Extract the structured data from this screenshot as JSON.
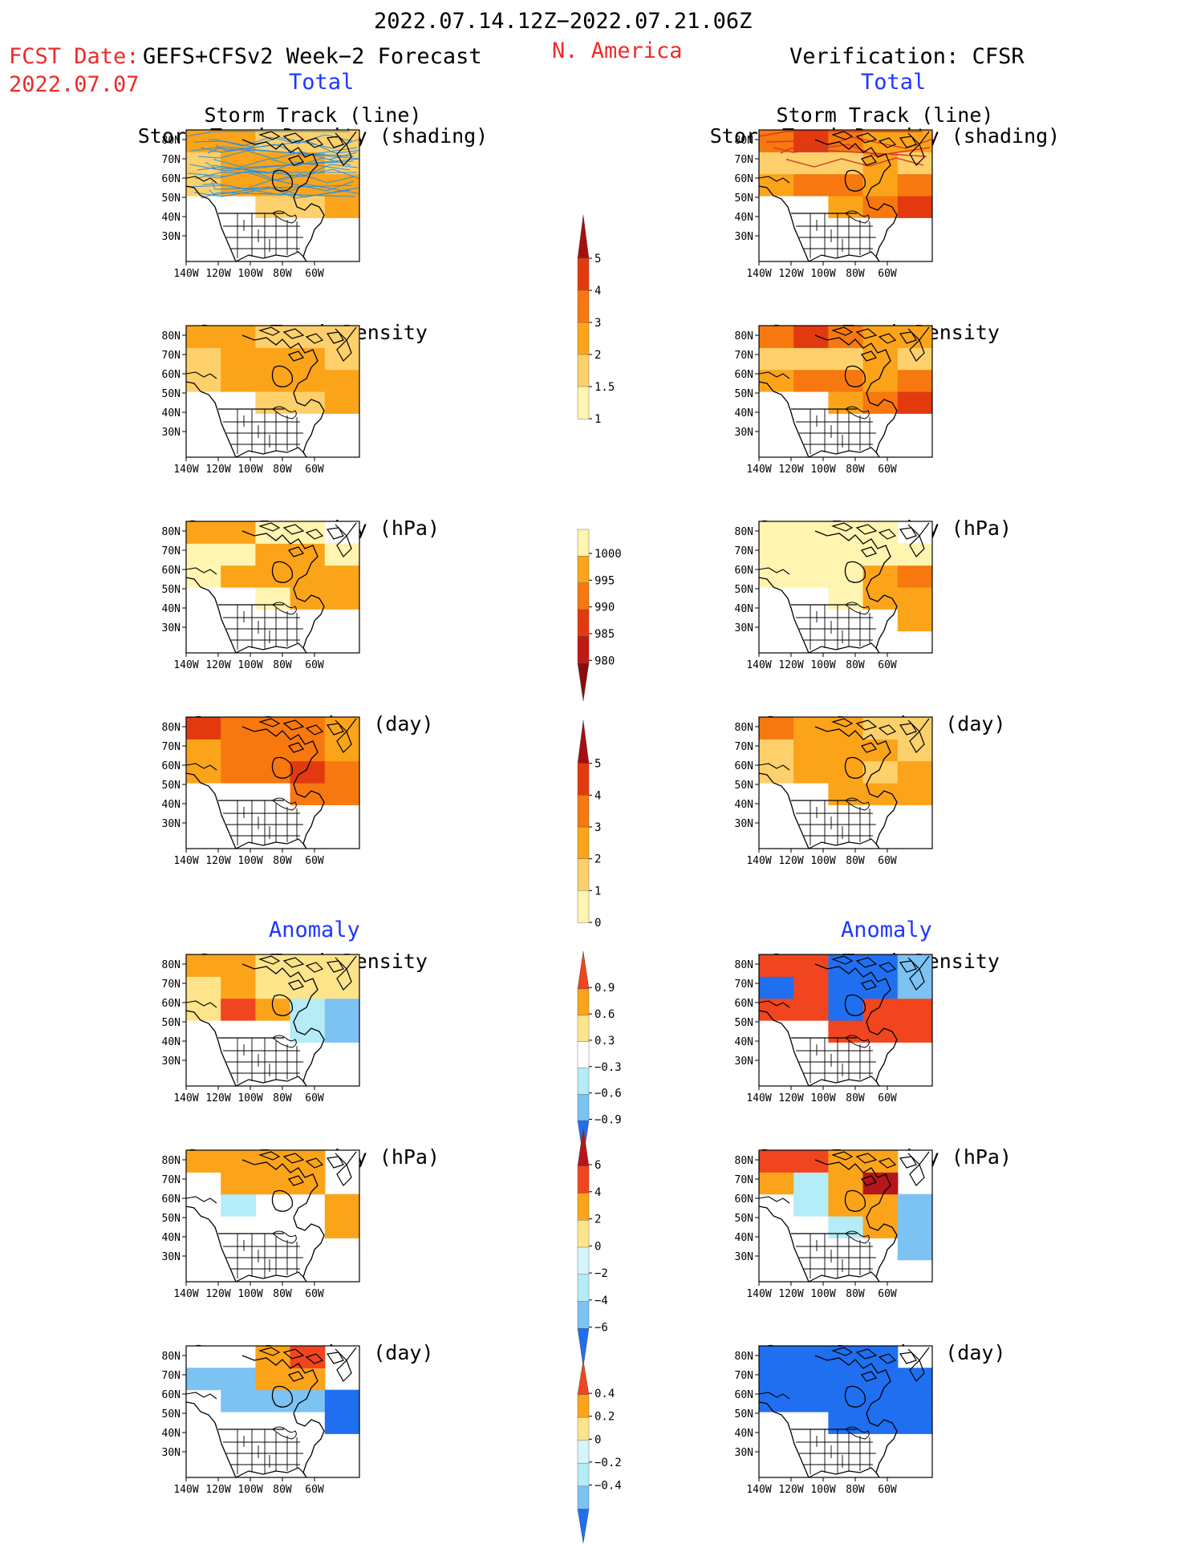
{
  "header": {
    "period": "2022.07.14.12Z−2022.07.21.06Z",
    "fcst_label": "FCST Date:",
    "fcst_model": "GEFS+CFSv2 Week−2 Forecast",
    "fcst_date": "2022.07.07",
    "region": "N. America",
    "verification": "Verification: CFSR",
    "left_section_total": "Total",
    "right_section_total": "Total",
    "left_section_anomaly": "Anomaly",
    "right_section_anomaly": "Anomaly"
  },
  "panel_titles": {
    "track_line": "Storm Track (line)",
    "track_shading": "Storm Track Density (shading)",
    "density": "Storm Track Density",
    "intensity": "Storm Intensity (hPa)",
    "duration": "Storm Duration (day)"
  },
  "axis": {
    "lat_ticks": [
      "80N",
      "70N",
      "60N",
      "50N",
      "40N",
      "30N"
    ],
    "lon_ticks": [
      "140W",
      "120W",
      "100W",
      "80W",
      "60W"
    ]
  },
  "colorbars": {
    "density_total": {
      "labels": [
        "5",
        "4",
        "3",
        "2",
        "1.5",
        "1"
      ],
      "colors": [
        "#a50f0f",
        "#e23a0e",
        "#f7780f",
        "#fba41a",
        "#fdd06b",
        "#fff4b0"
      ]
    },
    "intensity_total": {
      "labels": [
        "1000",
        "995",
        "990",
        "985",
        "980"
      ],
      "colors": [
        "#fff4b0",
        "#fba41a",
        "#f7780f",
        "#e23a0e",
        "#c01a12",
        "#8a0d0d"
      ]
    },
    "duration_total": {
      "labels": [
        "5",
        "4",
        "3",
        "2",
        "1",
        "0"
      ],
      "colors": [
        "#a50f0f",
        "#e23a0e",
        "#f7780f",
        "#fba41a",
        "#fdd06b",
        "#fff4b0"
      ]
    },
    "density_anomaly": {
      "labels": [
        "0.9",
        "0.6",
        "0.3",
        "−0.3",
        "−0.6",
        "−0.9"
      ],
      "colors": [
        "#f0451e",
        "#fba41a",
        "#fde48a",
        "#ffffff",
        "#b4ecf7",
        "#7cc2f3",
        "#1f6ff0"
      ]
    },
    "intensity_anomaly": {
      "labels": [
        "6",
        "4",
        "2",
        "0",
        "−2",
        "−4",
        "−6"
      ],
      "colors": [
        "#b4161b",
        "#f0451e",
        "#fba41a",
        "#fde48a",
        "#d6f4fb",
        "#b4ecf7",
        "#7cc2f3",
        "#1f6ff0"
      ]
    },
    "duration_anomaly": {
      "labels": [
        "0.4",
        "0.2",
        "0",
        "−0.2",
        "−0.4"
      ],
      "colors": [
        "#f0451e",
        "#fba41a",
        "#fde48a",
        "#d6f4fb",
        "#b4ecf7",
        "#7cc2f3",
        "#1f6ff0"
      ]
    }
  },
  "chart_data": [
    {
      "type": "heatmap",
      "panel": "forecast-total-storm-track",
      "title": "Storm Track (line) / Storm Track Density (shading)",
      "xlim": [
        -150,
        -50
      ],
      "ylim": [
        25,
        85
      ],
      "x": [
        "140W",
        "120W",
        "100W",
        "80W",
        "60W"
      ],
      "y": [
        "30N",
        "40N",
        "50N",
        "60N",
        "70N",
        "80N"
      ],
      "values": [
        [
          0,
          0,
          0,
          0,
          0
        ],
        [
          0,
          0,
          0,
          0,
          0
        ],
        [
          0,
          0,
          1.5,
          1.5,
          2
        ],
        [
          1.5,
          2,
          2,
          2,
          2
        ],
        [
          1.5,
          2,
          2,
          2,
          1.5
        ],
        [
          2,
          2,
          1.5,
          1.5,
          1.5
        ]
      ]
    },
    {
      "type": "heatmap",
      "panel": "cfsr-total-storm-track",
      "title": "Storm Track (line) / Storm Track Density (shading)",
      "xlim": [
        -150,
        -50
      ],
      "ylim": [
        25,
        85
      ],
      "x": [
        "140W",
        "120W",
        "100W",
        "80W",
        "60W"
      ],
      "y": [
        "30N",
        "40N",
        "50N",
        "60N",
        "70N",
        "80N"
      ],
      "values": [
        [
          0,
          0,
          0,
          0,
          0
        ],
        [
          0,
          0,
          0,
          0,
          0
        ],
        [
          0,
          0,
          2,
          3,
          4
        ],
        [
          2,
          3,
          3,
          2,
          3
        ],
        [
          1.5,
          1.5,
          1.5,
          2,
          1.5
        ],
        [
          3,
          4,
          3,
          2,
          2
        ]
      ]
    },
    {
      "type": "heatmap",
      "panel": "forecast-total-density",
      "title": "Storm Track Density",
      "xlim": [
        -150,
        -50
      ],
      "ylim": [
        25,
        85
      ],
      "x": [
        "140W",
        "120W",
        "100W",
        "80W",
        "60W"
      ],
      "y": [
        "30N",
        "40N",
        "50N",
        "60N",
        "70N",
        "80N"
      ],
      "values": [
        [
          0,
          0,
          0,
          0,
          0
        ],
        [
          0,
          0,
          0,
          0,
          0
        ],
        [
          0,
          0,
          1.5,
          1.5,
          2
        ],
        [
          1.5,
          2,
          2,
          2,
          2
        ],
        [
          1.5,
          2,
          2,
          2,
          1.5
        ],
        [
          2,
          2,
          1.5,
          1.5,
          1.5
        ]
      ]
    },
    {
      "type": "heatmap",
      "panel": "cfsr-total-density",
      "title": "Storm Track Density",
      "xlim": [
        -150,
        -50
      ],
      "ylim": [
        25,
        85
      ],
      "x": [
        "140W",
        "120W",
        "100W",
        "80W",
        "60W"
      ],
      "y": [
        "30N",
        "40N",
        "50N",
        "60N",
        "70N",
        "80N"
      ],
      "values": [
        [
          0,
          0,
          0,
          0,
          0
        ],
        [
          0,
          0,
          0,
          0,
          0
        ],
        [
          0,
          0,
          2,
          3,
          4
        ],
        [
          2,
          3,
          3,
          2,
          3
        ],
        [
          1.5,
          1.5,
          1.5,
          2,
          1.5
        ],
        [
          3,
          4,
          3,
          2,
          2
        ]
      ]
    },
    {
      "type": "heatmap",
      "panel": "forecast-total-intensity",
      "title": "Storm Intensity (hPa)",
      "xlim": [
        -150,
        -50
      ],
      "ylim": [
        25,
        85
      ],
      "x": [
        "140W",
        "120W",
        "100W",
        "80W",
        "60W"
      ],
      "y": [
        "30N",
        "40N",
        "50N",
        "60N",
        "70N",
        "80N"
      ],
      "values": [
        [
          0,
          0,
          0,
          0,
          0
        ],
        [
          0,
          0,
          0,
          0,
          0
        ],
        [
          0,
          0,
          1000,
          995,
          995
        ],
        [
          1000,
          995,
          995,
          995,
          995
        ],
        [
          1000,
          1000,
          995,
          995,
          1000
        ],
        [
          995,
          995,
          1000,
          1000,
          0
        ]
      ]
    },
    {
      "type": "heatmap",
      "panel": "cfsr-total-intensity",
      "title": "Storm Intensity (hPa)",
      "xlim": [
        -150,
        -50
      ],
      "ylim": [
        25,
        85
      ],
      "x": [
        "140W",
        "120W",
        "100W",
        "80W",
        "60W"
      ],
      "y": [
        "30N",
        "40N",
        "50N",
        "60N",
        "70N",
        "80N"
      ],
      "values": [
        [
          0,
          0,
          0,
          0,
          0
        ],
        [
          0,
          0,
          0,
          0,
          995
        ],
        [
          0,
          0,
          1000,
          995,
          995
        ],
        [
          1000,
          1000,
          1000,
          995,
          990
        ],
        [
          1000,
          1000,
          1000,
          1000,
          1000
        ],
        [
          1000,
          1000,
          1000,
          1000,
          0
        ]
      ]
    },
    {
      "type": "heatmap",
      "panel": "forecast-total-duration",
      "title": "Storm Duration (day)",
      "xlim": [
        -150,
        -50
      ],
      "ylim": [
        25,
        85
      ],
      "x": [
        "140W",
        "120W",
        "100W",
        "80W",
        "60W"
      ],
      "y": [
        "30N",
        "40N",
        "50N",
        "60N",
        "70N",
        "80N"
      ],
      "values": [
        [
          0,
          0,
          0,
          0,
          0
        ],
        [
          0,
          0,
          0,
          0,
          0
        ],
        [
          0,
          0,
          0,
          3,
          3
        ],
        [
          2,
          3,
          3,
          4,
          3
        ],
        [
          2,
          3,
          3,
          3,
          2
        ],
        [
          4,
          3,
          3,
          3,
          2
        ]
      ]
    },
    {
      "type": "heatmap",
      "panel": "cfsr-total-duration",
      "title": "Storm Duration (day)",
      "xlim": [
        -150,
        -50
      ],
      "ylim": [
        25,
        85
      ],
      "x": [
        "140W",
        "120W",
        "100W",
        "80W",
        "60W"
      ],
      "y": [
        "30N",
        "40N",
        "50N",
        "60N",
        "70N",
        "80N"
      ],
      "values": [
        [
          0,
          0,
          0,
          0,
          0
        ],
        [
          0,
          0,
          0,
          0,
          0
        ],
        [
          0,
          0,
          2,
          2,
          2
        ],
        [
          1,
          2,
          2,
          1,
          2
        ],
        [
          1,
          2,
          2,
          2,
          1
        ],
        [
          3,
          2,
          2,
          1,
          1
        ]
      ]
    },
    {
      "type": "heatmap",
      "panel": "forecast-anomaly-density",
      "title": "Storm Track Density",
      "xlim": [
        -150,
        -50
      ],
      "ylim": [
        25,
        85
      ],
      "x": [
        "140W",
        "120W",
        "100W",
        "80W",
        "60W"
      ],
      "y": [
        "30N",
        "40N",
        "50N",
        "60N",
        "70N",
        "80N"
      ],
      "values": [
        [
          0,
          0,
          0,
          0,
          0
        ],
        [
          0,
          0,
          0,
          0,
          0
        ],
        [
          0,
          0,
          0,
          -0.3,
          -0.6
        ],
        [
          0.3,
          0.9,
          0.6,
          -0.3,
          -0.6
        ],
        [
          0.3,
          0.6,
          0.3,
          0.3,
          0.3
        ],
        [
          0.6,
          0.6,
          0.3,
          0.3,
          0.3
        ]
      ]
    },
    {
      "type": "heatmap",
      "panel": "cfsr-anomaly-density",
      "title": "Storm Track Density",
      "xlim": [
        -150,
        -50
      ],
      "ylim": [
        25,
        85
      ],
      "x": [
        "140W",
        "120W",
        "100W",
        "80W",
        "60W"
      ],
      "y": [
        "30N",
        "40N",
        "50N",
        "60N",
        "70N",
        "80N"
      ],
      "values": [
        [
          0,
          0,
          0,
          0,
          0
        ],
        [
          0,
          0,
          0,
          0,
          0
        ],
        [
          0,
          0,
          0.9,
          0.9,
          0.9
        ],
        [
          0.9,
          0.9,
          -0.9,
          0.9,
          0.9
        ],
        [
          -0.9,
          0.9,
          -0.9,
          -0.9,
          -0.6
        ],
        [
          0.9,
          0.9,
          -0.9,
          -0.9,
          -0.6
        ]
      ]
    },
    {
      "type": "heatmap",
      "panel": "forecast-anomaly-intensity",
      "title": "Storm Intensity (hPa)",
      "xlim": [
        -150,
        -50
      ],
      "ylim": [
        25,
        85
      ],
      "x": [
        "140W",
        "120W",
        "100W",
        "80W",
        "60W"
      ],
      "y": [
        "30N",
        "40N",
        "50N",
        "60N",
        "70N",
        "80N"
      ],
      "values": [
        [
          0,
          0,
          0,
          0,
          0
        ],
        [
          0,
          0,
          0,
          0,
          0
        ],
        [
          0,
          0,
          0,
          0,
          2
        ],
        [
          0,
          -2,
          0,
          0,
          2
        ],
        [
          0,
          2,
          2,
          2,
          0
        ],
        [
          2,
          2,
          2,
          2,
          0
        ]
      ]
    },
    {
      "type": "heatmap",
      "panel": "cfsr-anomaly-intensity",
      "title": "Storm Intensity (hPa)",
      "xlim": [
        -150,
        -50
      ],
      "ylim": [
        25,
        85
      ],
      "x": [
        "140W",
        "120W",
        "100W",
        "80W",
        "60W"
      ],
      "y": [
        "30N",
        "40N",
        "50N",
        "60N",
        "70N",
        "80N"
      ],
      "values": [
        [
          0,
          0,
          0,
          0,
          0
        ],
        [
          0,
          0,
          0,
          0,
          -4
        ],
        [
          0,
          0,
          -2,
          2,
          -4
        ],
        [
          0,
          -2,
          2,
          2,
          -4
        ],
        [
          2,
          -2,
          2,
          6,
          0
        ],
        [
          4,
          4,
          2,
          2,
          0
        ]
      ]
    },
    {
      "type": "heatmap",
      "panel": "forecast-anomaly-duration",
      "title": "Storm Duration (day)",
      "xlim": [
        -150,
        -50
      ],
      "ylim": [
        25,
        85
      ],
      "x": [
        "140W",
        "120W",
        "100W",
        "80W",
        "60W"
      ],
      "y": [
        "30N",
        "40N",
        "50N",
        "60N",
        "70N",
        "80N"
      ],
      "values": [
        [
          0,
          0,
          0,
          0,
          0
        ],
        [
          0,
          0,
          0,
          0,
          0
        ],
        [
          0,
          0,
          0,
          0,
          -0.4
        ],
        [
          0,
          -0.2,
          -0.2,
          -0.2,
          -0.4
        ],
        [
          -0.2,
          -0.2,
          0.2,
          0.2,
          0
        ],
        [
          0,
          0,
          0.2,
          0.4,
          0
        ]
      ]
    },
    {
      "type": "heatmap",
      "panel": "cfsr-anomaly-duration",
      "title": "Storm Duration (day)",
      "xlim": [
        -150,
        -50
      ],
      "ylim": [
        25,
        85
      ],
      "x": [
        "140W",
        "120W",
        "100W",
        "80W",
        "60W"
      ],
      "y": [
        "30N",
        "40N",
        "50N",
        "60N",
        "70N",
        "80N"
      ],
      "values": [
        [
          0,
          0,
          0,
          0,
          0
        ],
        [
          0,
          0,
          0,
          0,
          0
        ],
        [
          0,
          0,
          -0.4,
          -0.4,
          -0.4
        ],
        [
          -0.4,
          -0.4,
          -0.4,
          -0.4,
          -0.4
        ],
        [
          -0.4,
          -0.4,
          -0.4,
          -0.4,
          -0.4
        ],
        [
          -0.4,
          -0.4,
          -0.4,
          -0.4,
          0
        ]
      ]
    }
  ]
}
